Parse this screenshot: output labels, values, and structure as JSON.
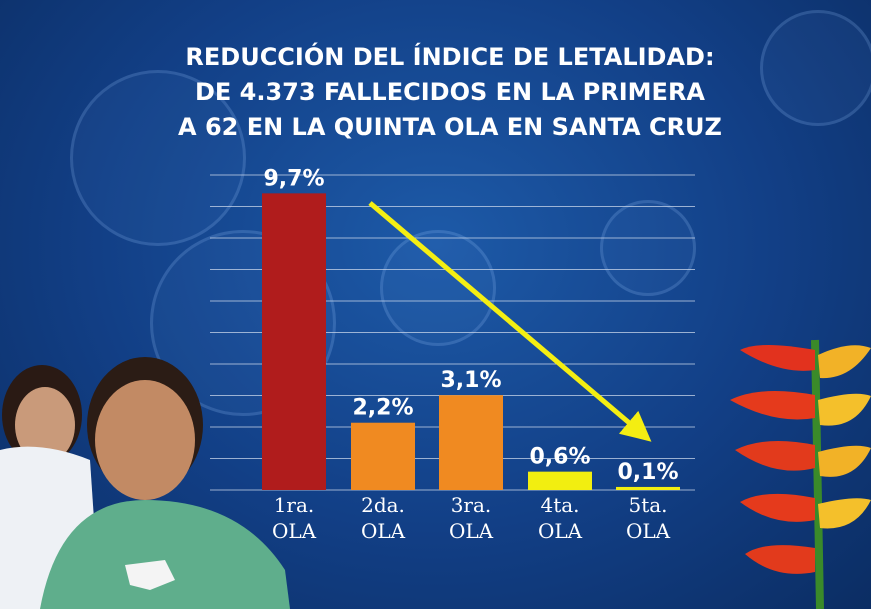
{
  "title_lines": [
    "REDUCCIÓN DEL ÍNDICE DE LETALIDAD:",
    "DE 4.373 FALLECIDOS EN LA PRIMERA",
    "A 62 EN LA QUINTA OLA EN SANTA CRUZ"
  ],
  "colors": {
    "bar_dark_red": "#b01c1c",
    "bar_orange": "#f08a21",
    "bar_yellow": "#f2ee10",
    "arrow": "#f4ee12",
    "gridline": "#c9d6ea"
  },
  "chart_data": {
    "type": "bar",
    "categories": [
      "1ra. OLA",
      "2da. OLA",
      "3ra. OLA",
      "4ta. OLA",
      "5ta. OLA"
    ],
    "category_lines": [
      [
        "1ra.",
        "OLA"
      ],
      [
        "2da.",
        "OLA"
      ],
      [
        "3ra.",
        "OLA"
      ],
      [
        "4ta.",
        "OLA"
      ],
      [
        "5ta.",
        "OLA"
      ]
    ],
    "values": [
      9.7,
      2.2,
      3.1,
      0.6,
      0.1
    ],
    "data_labels": [
      "9,7%",
      "2,2%",
      "3,1%",
      "0,6%",
      "0,1%"
    ],
    "bar_colors": [
      "#b01c1c",
      "#f08a21",
      "#f08a21",
      "#f2ee10",
      "#f2ee10"
    ],
    "title": "",
    "xlabel": "",
    "ylabel": "",
    "ylim": [
      0,
      10.3
    ],
    "grid": true,
    "legend": "none",
    "annotation": "downward arrow from first to last bar"
  }
}
